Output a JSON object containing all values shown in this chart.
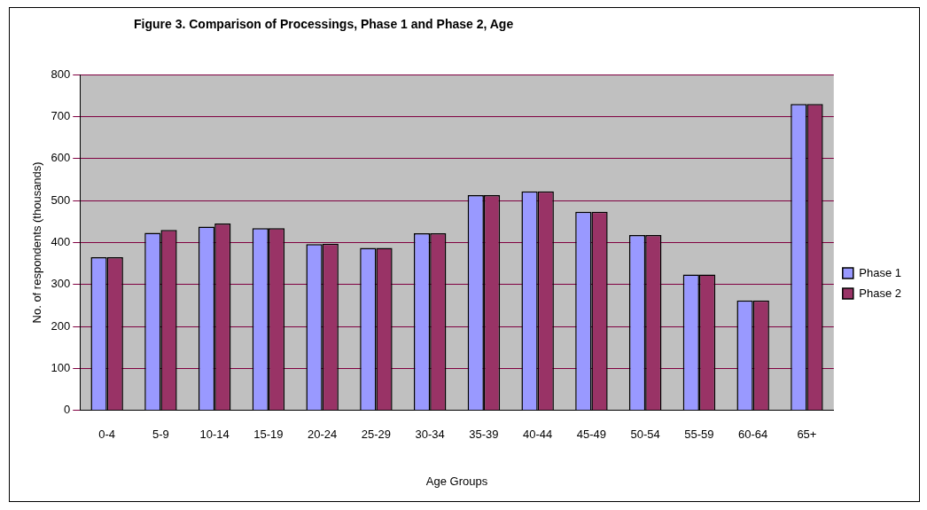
{
  "chart_data": {
    "type": "bar",
    "title": "Figure 3. Comparison of Processings, Phase 1 and Phase 2, Age",
    "xlabel": "Age Groups",
    "ylabel": "No. of respondents (thousands)",
    "categories": [
      "0-4",
      "5-9",
      "10-14",
      "15-19",
      "20-24",
      "25-29",
      "30-34",
      "35-39",
      "40-44",
      "45-49",
      "50-54",
      "55-59",
      "60-64",
      "65+"
    ],
    "series": [
      {
        "name": "Phase 1",
        "color": "#9999ff",
        "values": [
          365,
          423,
          438,
          434,
          396,
          387,
          422,
          513,
          522,
          473,
          418,
          324,
          262,
          730
        ]
      },
      {
        "name": "Phase 2",
        "color": "#993366",
        "values": [
          365,
          430,
          445,
          434,
          397,
          387,
          422,
          513,
          522,
          473,
          418,
          324,
          262,
          730
        ]
      }
    ],
    "ylim": [
      0,
      800
    ],
    "yticks": [
      0,
      100,
      200,
      300,
      400,
      500,
      600,
      700,
      800
    ],
    "grid": "y",
    "legend": "right"
  }
}
